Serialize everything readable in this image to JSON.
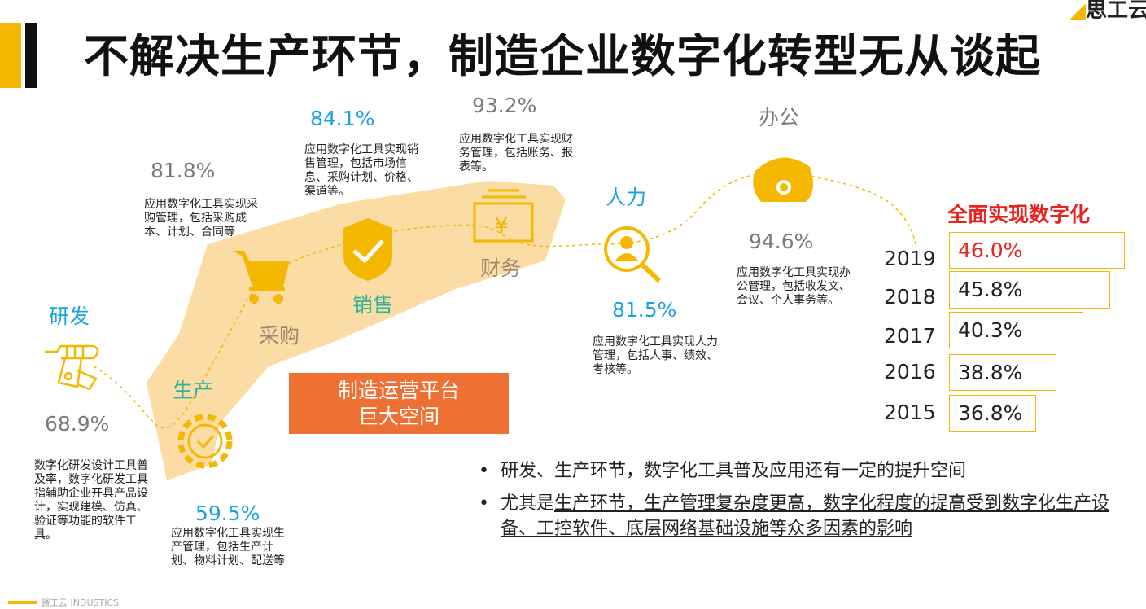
{
  "header": {
    "title": "不解决生产环节，制造企业数字化转型无从谈起",
    "logo_text": "思工云"
  },
  "stages": {
    "rnd": {
      "label": "研发",
      "pct": "68.9%",
      "desc": "数字化研发设计工具普及率，数字化研发工具指辅助企业开具产品设计，实现建模、仿真、验证等功能的软件工具。"
    },
    "production": {
      "label": "生产",
      "pct": "59.5%",
      "desc": "应用数字化工具实现生产管理，包括生产计划、物料计划、配送等"
    },
    "purchase": {
      "label": "采购",
      "pct": "81.8%",
      "desc": "应用数字化工具实现采购管理，包括采购成本、计划、合同等"
    },
    "sales": {
      "label": "销售",
      "pct": "84.1%",
      "desc": "应用数字化工具实现销售管理，包括市场信息、采购计划、价格、渠道等。"
    },
    "finance": {
      "label": "财务",
      "pct": "93.2%",
      "desc": "应用数字化工具实现财务管理，包括账务、报表等。"
    },
    "hr": {
      "label": "人力",
      "pct": "81.5%",
      "desc": "应用数字化工具实现人力管理，包括人事、绩效、考核等。"
    },
    "office": {
      "label": "办公",
      "pct": "94.6%",
      "desc": "应用数字化工具实现办公管理，包括收发文、会议、个人事务等。"
    }
  },
  "platform": {
    "line1": "制造运营平台",
    "line2": "巨大空间"
  },
  "full_digital": {
    "title": "全面实现数字化",
    "rows": [
      {
        "year": "2019",
        "value": "46.0%",
        "fraction": 0.46
      },
      {
        "year": "2018",
        "value": "45.8%",
        "fraction": 0.458
      },
      {
        "year": "2017",
        "value": "40.3%",
        "fraction": 0.403
      },
      {
        "year": "2016",
        "value": "38.8%",
        "fraction": 0.388
      },
      {
        "year": "2015",
        "value": "36.8%",
        "fraction": 0.368
      }
    ]
  },
  "bullets": {
    "b1": "研发、生产环节，数字化工具普及应用还有一定的提升空间",
    "b2_prefix": "尤其是",
    "b2_underlined": "生产环节，生产管理复杂度更高，数字化程度的提高受到数字化生产设备、工控软件、底层网络基础设施等众多因素的影响"
  },
  "footer": {
    "text": "赣工云 INDUSTICS"
  },
  "colors": {
    "accent_yellow": "#f5b800",
    "blue": "#1aa3e0",
    "red": "#e8231e",
    "orange_box": "#ee7032",
    "band": "#fbd89b"
  }
}
